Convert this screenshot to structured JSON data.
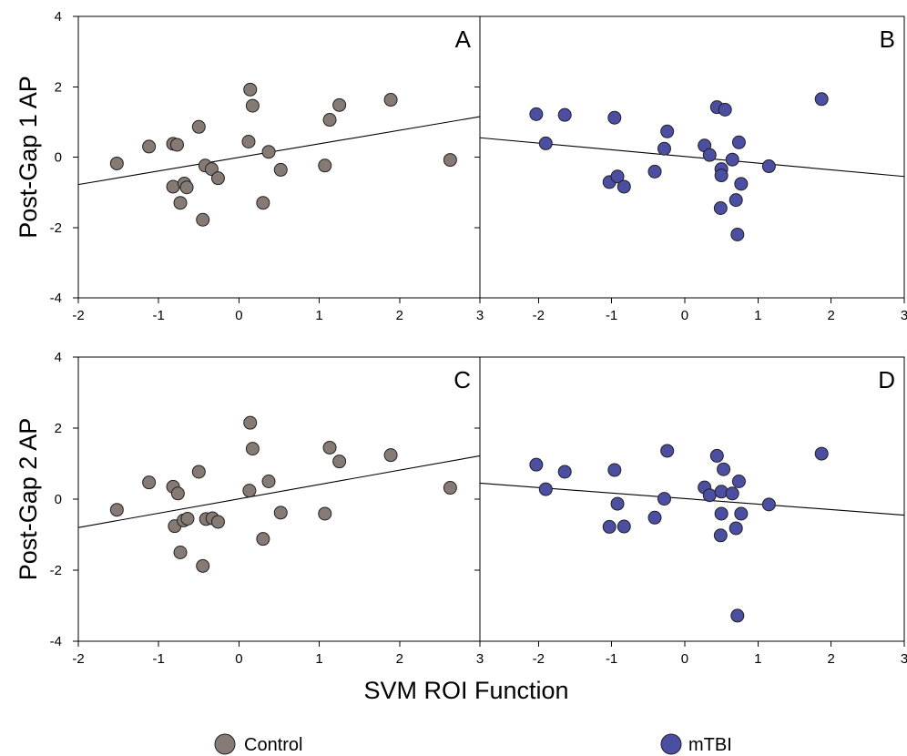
{
  "chart_data": [
    {
      "type": "scatter",
      "panel": "A",
      "group": "Control",
      "ylabel": "Post-Gap 1 AP",
      "xlim": [
        -2,
        3
      ],
      "ylim": [
        -4,
        4
      ],
      "xticks": [
        -2,
        -1,
        0,
        1,
        2,
        3
      ],
      "yticks": [
        -4,
        -2,
        0,
        2,
        4
      ],
      "color": "#857a74",
      "fit_line": {
        "x": [
          -2,
          3
        ],
        "y": [
          -0.78,
          1.15
        ]
      },
      "points": [
        {
          "x": -1.52,
          "y": -0.18
        },
        {
          "x": -1.12,
          "y": 0.3
        },
        {
          "x": -0.82,
          "y": 0.38
        },
        {
          "x": -0.77,
          "y": 0.35
        },
        {
          "x": -0.82,
          "y": -0.84
        },
        {
          "x": -0.73,
          "y": -1.3
        },
        {
          "x": -0.68,
          "y": -0.75
        },
        {
          "x": -0.65,
          "y": -0.86
        },
        {
          "x": -0.5,
          "y": 0.86
        },
        {
          "x": -0.45,
          "y": -1.78
        },
        {
          "x": -0.42,
          "y": -0.24
        },
        {
          "x": -0.34,
          "y": -0.34
        },
        {
          "x": -0.26,
          "y": -0.6
        },
        {
          "x": 0.12,
          "y": 0.44
        },
        {
          "x": 0.14,
          "y": 1.92
        },
        {
          "x": 0.17,
          "y": 1.46
        },
        {
          "x": 0.3,
          "y": -1.3
        },
        {
          "x": 0.37,
          "y": 0.15
        },
        {
          "x": 0.52,
          "y": -0.36
        },
        {
          "x": 1.07,
          "y": -0.24
        },
        {
          "x": 1.13,
          "y": 1.06
        },
        {
          "x": 1.25,
          "y": 1.48
        },
        {
          "x": 1.89,
          "y": 1.63
        },
        {
          "x": 2.63,
          "y": -0.08
        }
      ]
    },
    {
      "type": "scatter",
      "panel": "B",
      "group": "mTBI",
      "xlim": [
        -2.8,
        3
      ],
      "ylim": [
        -4,
        4
      ],
      "xticks": [
        -2,
        -1,
        0,
        1,
        2,
        3
      ],
      "yticks": [
        -4,
        -2,
        0,
        2,
        4
      ],
      "color": "#4b4ea1",
      "fit_line": {
        "x": [
          -2.8,
          3
        ],
        "y": [
          0.55,
          -0.55
        ]
      },
      "points": [
        {
          "x": -2.03,
          "y": 1.22
        },
        {
          "x": -1.9,
          "y": 0.39
        },
        {
          "x": -1.64,
          "y": 1.2
        },
        {
          "x": -1.03,
          "y": -0.71
        },
        {
          "x": -0.96,
          "y": 1.12
        },
        {
          "x": -0.92,
          "y": -0.55
        },
        {
          "x": -0.83,
          "y": -0.84
        },
        {
          "x": -0.41,
          "y": -0.41
        },
        {
          "x": -0.28,
          "y": 0.24
        },
        {
          "x": -0.24,
          "y": 0.73
        },
        {
          "x": 0.27,
          "y": 0.33
        },
        {
          "x": 0.34,
          "y": 0.06
        },
        {
          "x": 0.44,
          "y": 1.42
        },
        {
          "x": 0.49,
          "y": -1.45
        },
        {
          "x": 0.5,
          "y": -0.34
        },
        {
          "x": 0.5,
          "y": -0.52
        },
        {
          "x": 0.55,
          "y": 1.35
        },
        {
          "x": 0.65,
          "y": -0.07
        },
        {
          "x": 0.7,
          "y": -1.22
        },
        {
          "x": 0.72,
          "y": -2.2
        },
        {
          "x": 0.74,
          "y": 0.42
        },
        {
          "x": 0.77,
          "y": -0.76
        },
        {
          "x": 1.15,
          "y": -0.26
        },
        {
          "x": 1.87,
          "y": 1.65
        }
      ]
    },
    {
      "type": "scatter",
      "panel": "C",
      "group": "Control",
      "ylabel": "Post-Gap 2 AP",
      "xlim": [
        -2,
        3
      ],
      "ylim": [
        -4,
        4
      ],
      "xticks": [
        -2,
        -1,
        0,
        1,
        2,
        3
      ],
      "yticks": [
        -4,
        -2,
        0,
        2,
        4
      ],
      "color": "#857a74",
      "fit_line": {
        "x": [
          -2,
          3
        ],
        "y": [
          -0.8,
          1.22
        ]
      },
      "points": [
        {
          "x": -1.52,
          "y": -0.3
        },
        {
          "x": -1.12,
          "y": 0.47
        },
        {
          "x": -0.82,
          "y": 0.35
        },
        {
          "x": -0.8,
          "y": -0.76
        },
        {
          "x": -0.76,
          "y": 0.16
        },
        {
          "x": -0.73,
          "y": -1.5
        },
        {
          "x": -0.69,
          "y": -0.6
        },
        {
          "x": -0.64,
          "y": -0.55
        },
        {
          "x": -0.5,
          "y": 0.77
        },
        {
          "x": -0.45,
          "y": -1.88
        },
        {
          "x": -0.41,
          "y": -0.56
        },
        {
          "x": -0.33,
          "y": -0.54
        },
        {
          "x": -0.26,
          "y": -0.64
        },
        {
          "x": 0.13,
          "y": 0.24
        },
        {
          "x": 0.14,
          "y": 2.15
        },
        {
          "x": 0.17,
          "y": 1.42
        },
        {
          "x": 0.3,
          "y": -1.12
        },
        {
          "x": 0.37,
          "y": 0.5
        },
        {
          "x": 0.52,
          "y": -0.38
        },
        {
          "x": 1.07,
          "y": -0.41
        },
        {
          "x": 1.13,
          "y": 1.45
        },
        {
          "x": 1.25,
          "y": 1.06
        },
        {
          "x": 1.89,
          "y": 1.24
        },
        {
          "x": 2.63,
          "y": 0.32
        }
      ]
    },
    {
      "type": "scatter",
      "panel": "D",
      "group": "mTBI",
      "xlim": [
        -2.8,
        3
      ],
      "ylim": [
        -4,
        4
      ],
      "xticks": [
        -2,
        -1,
        0,
        1,
        2,
        3
      ],
      "yticks": [
        -4,
        -2,
        0,
        2,
        4
      ],
      "color": "#4b4ea1",
      "fit_line": {
        "x": [
          -2.8,
          3
        ],
        "y": [
          0.45,
          -0.45
        ]
      },
      "points": [
        {
          "x": -2.03,
          "y": 0.97
        },
        {
          "x": -1.9,
          "y": 0.28
        },
        {
          "x": -1.64,
          "y": 0.77
        },
        {
          "x": -1.03,
          "y": -0.78
        },
        {
          "x": -0.96,
          "y": 0.82
        },
        {
          "x": -0.92,
          "y": -0.13
        },
        {
          "x": -0.83,
          "y": -0.77
        },
        {
          "x": -0.41,
          "y": -0.52
        },
        {
          "x": -0.28,
          "y": 0.01
        },
        {
          "x": -0.24,
          "y": 1.36
        },
        {
          "x": 0.27,
          "y": 0.33
        },
        {
          "x": 0.34,
          "y": 0.11
        },
        {
          "x": 0.44,
          "y": 1.22
        },
        {
          "x": 0.49,
          "y": -1.02
        },
        {
          "x": 0.5,
          "y": -0.41
        },
        {
          "x": 0.5,
          "y": 0.21
        },
        {
          "x": 0.53,
          "y": 0.84
        },
        {
          "x": 0.65,
          "y": 0.16
        },
        {
          "x": 0.7,
          "y": -0.82
        },
        {
          "x": 0.72,
          "y": -3.28
        },
        {
          "x": 0.74,
          "y": 0.5
        },
        {
          "x": 0.77,
          "y": -0.41
        },
        {
          "x": 1.15,
          "y": -0.15
        },
        {
          "x": 1.87,
          "y": 1.28
        }
      ]
    }
  ],
  "xlabel": "SVM ROI Function",
  "legend": [
    {
      "label": "Control",
      "color": "#857a74"
    },
    {
      "label": "mTBI",
      "color": "#4b4ea1"
    }
  ]
}
